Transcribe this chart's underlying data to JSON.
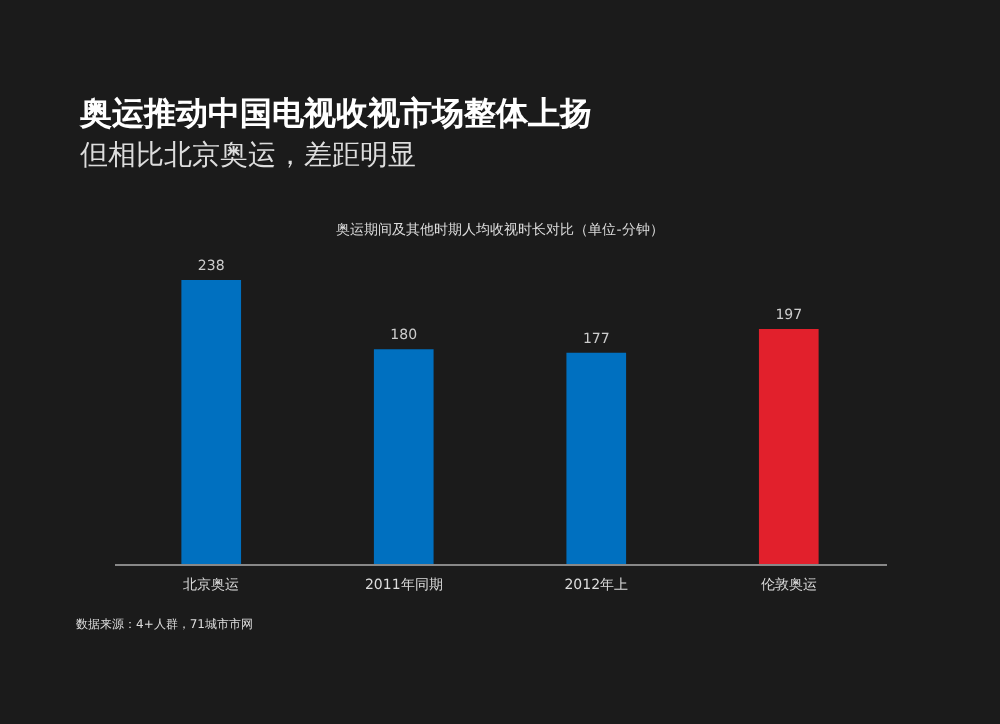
{
  "chart_data": {
    "type": "bar",
    "title": "奥运推动中国电视收视市场整体上扬",
    "subtitle": "但相比北京奥运，差距明显",
    "annotations": [
      "奥运期间及其他时期人均收视时长对比（单位-分钟）",
      "数据来源：4+人群，71城市市网"
    ],
    "categories": [
      "北京奥运",
      "2011年同期",
      "2012年上",
      "伦敦奥运"
    ],
    "values": [
      238,
      180,
      177,
      197
    ],
    "colors": [
      "#0070c0",
      "#0070c0",
      "#0070c0",
      "#e2202c"
    ],
    "data_labels": true
  }
}
